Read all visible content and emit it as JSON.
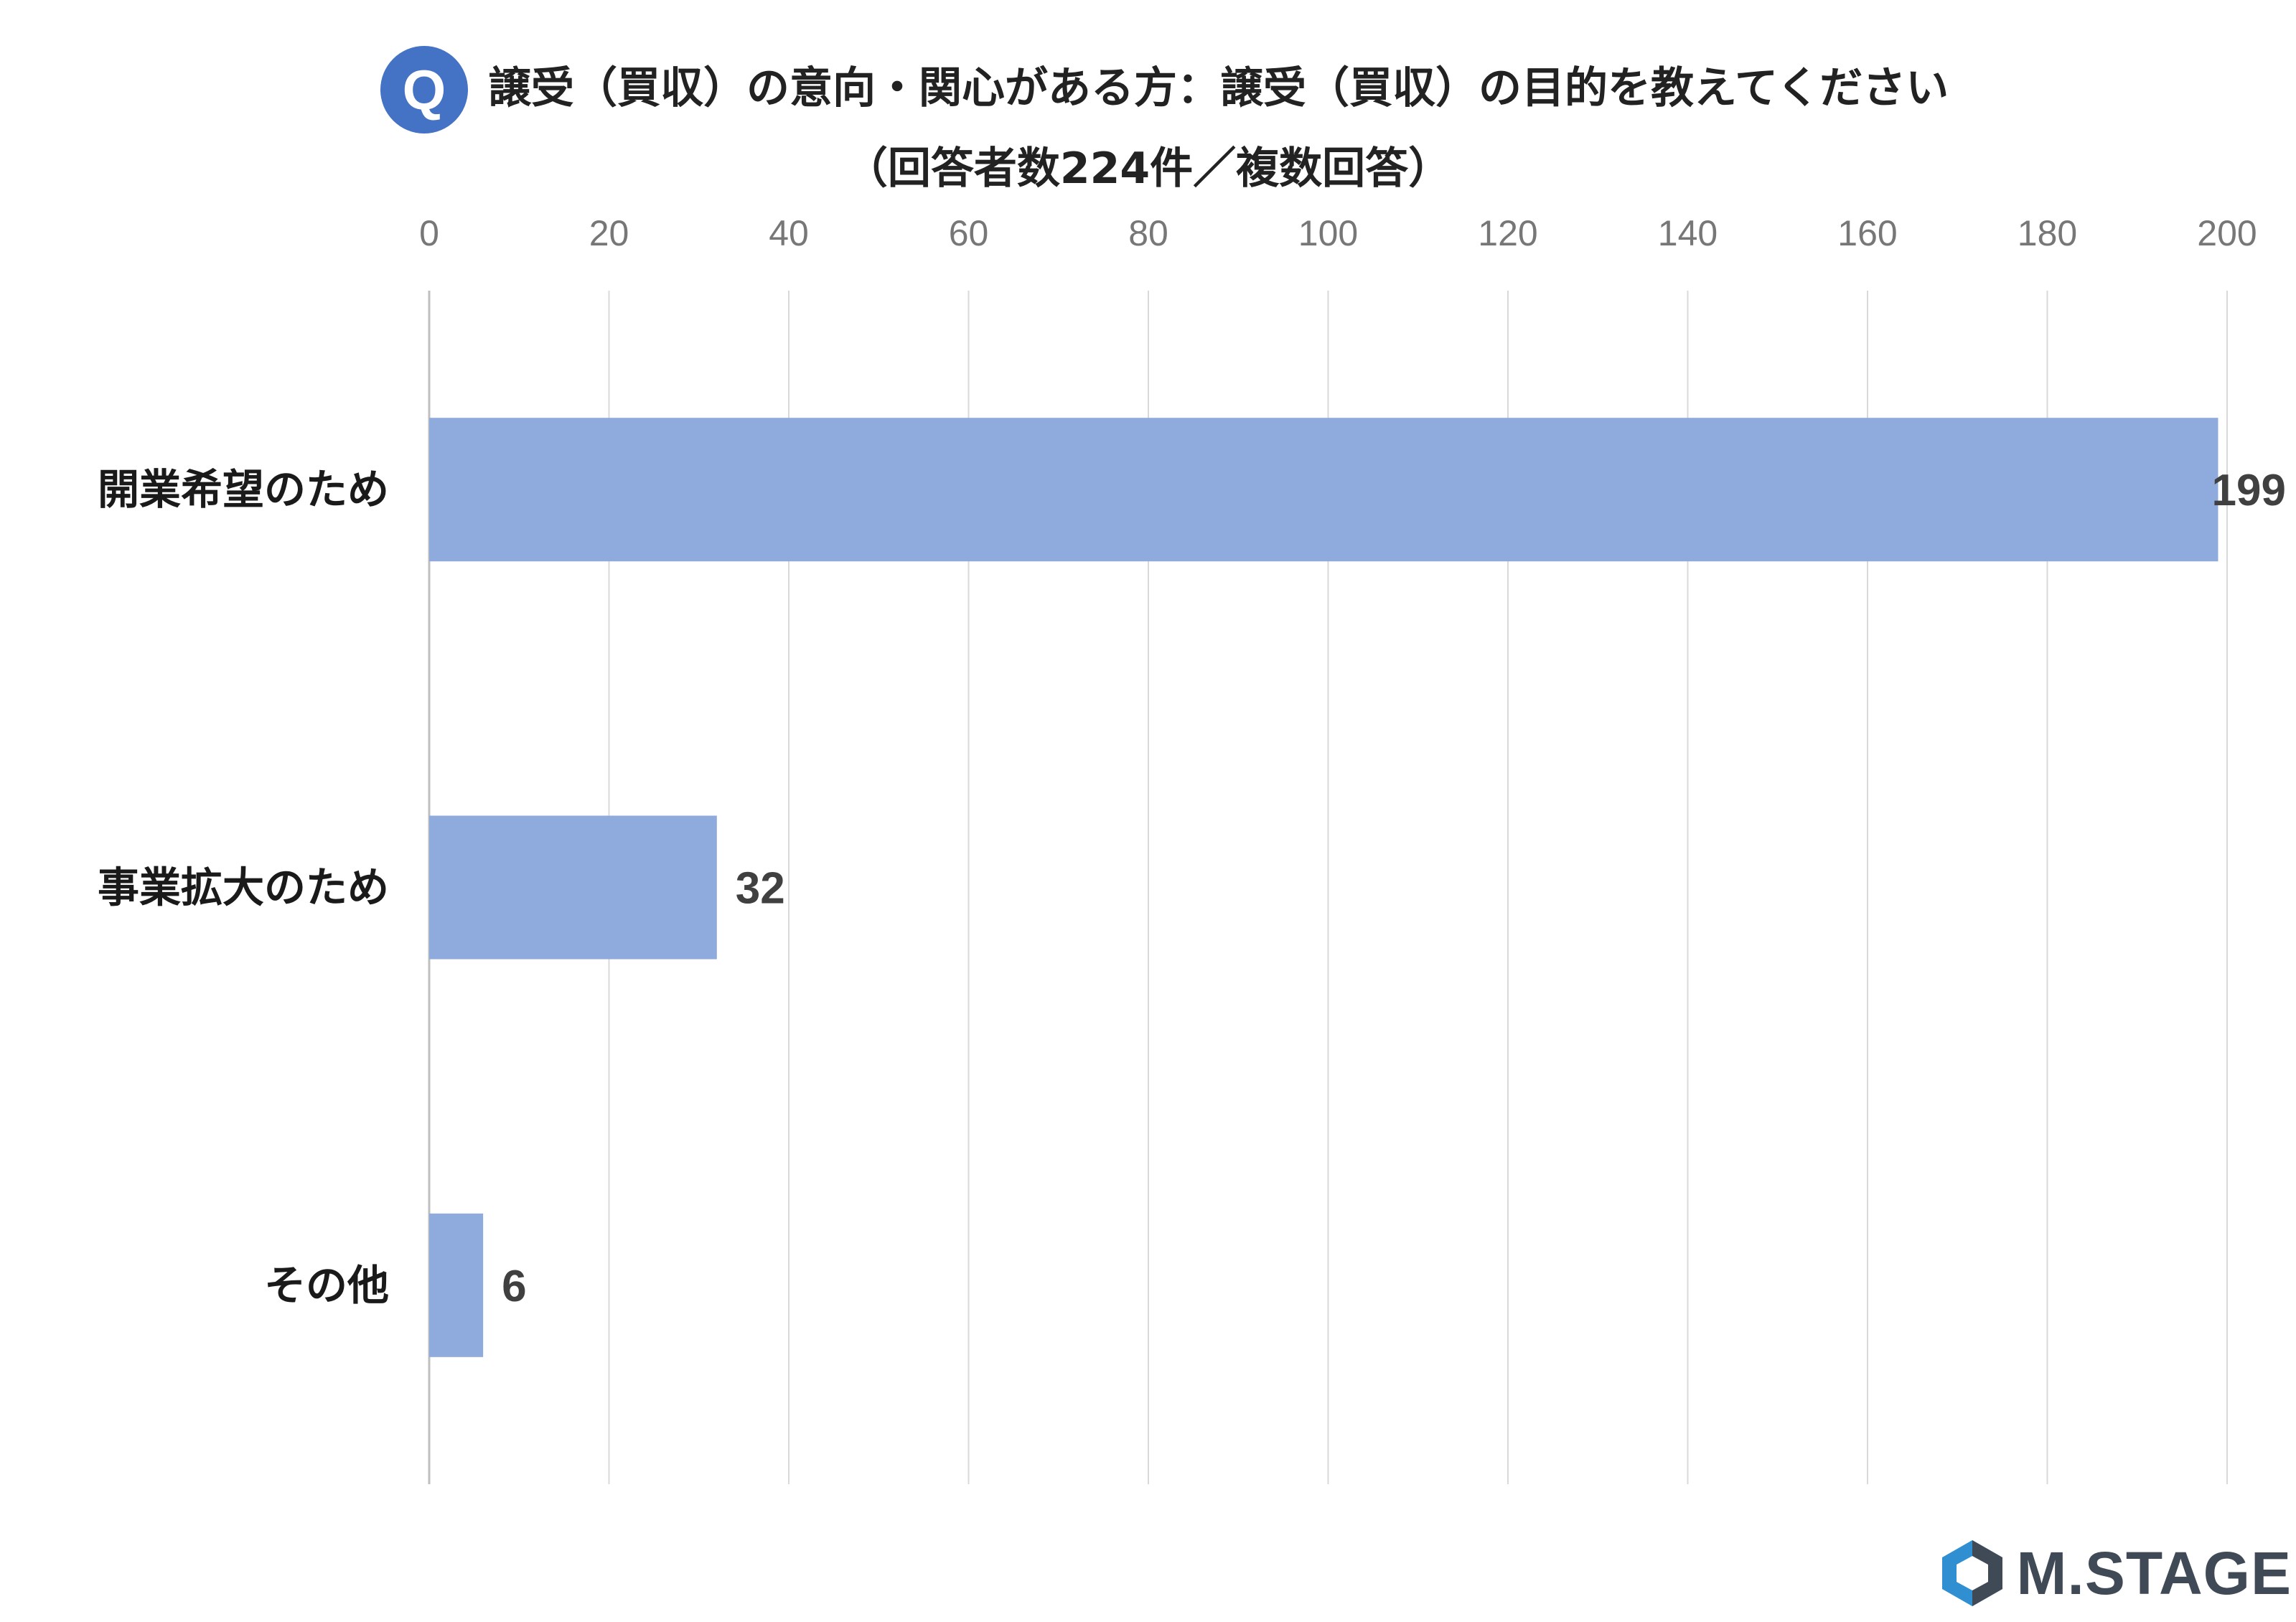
{
  "header": {
    "badge": "Q",
    "title_line1": "譲受（買収）の意向・関心がある方：譲受（買収）の目的を教えてください",
    "title_line2": "（回答者数224件／複数回答）"
  },
  "logo": {
    "icon": "hexagon-logo-icon",
    "text": "M.STAGE",
    "colors": {
      "light": "#2f8fd0",
      "dark": "#404a57"
    }
  },
  "chart_data": {
    "type": "bar",
    "orientation": "horizontal",
    "categories": [
      "開業希望のため",
      "事業拡大のため",
      "その他"
    ],
    "values": [
      199,
      32,
      6
    ],
    "xlim": [
      0,
      200
    ],
    "xticks": [
      "0",
      "20",
      "40",
      "60",
      "80",
      "100",
      "120",
      "140",
      "160",
      "180",
      "200"
    ],
    "data_labels": [
      "199",
      "32",
      "6"
    ],
    "grid": true,
    "axis_position": "top",
    "bar_color": "#8faadc",
    "grid_color": "#d9d9d9"
  }
}
